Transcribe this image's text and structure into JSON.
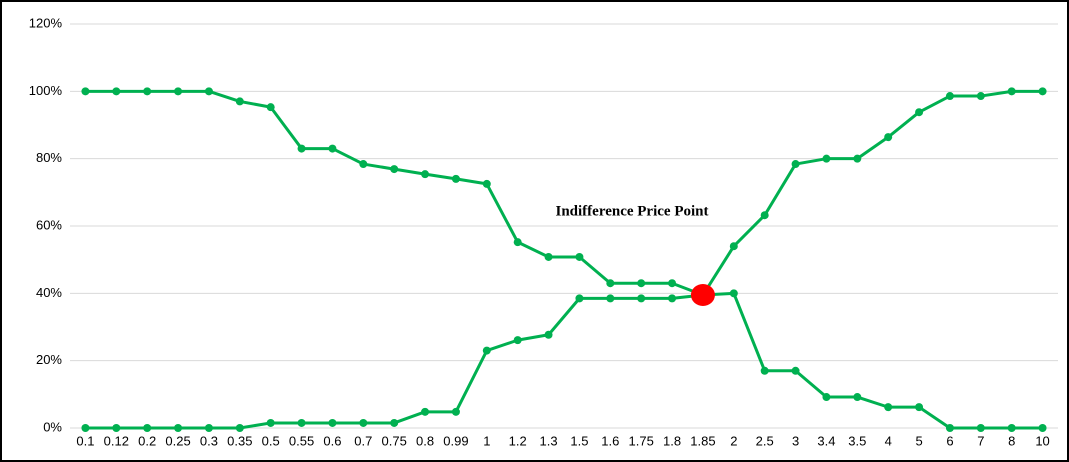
{
  "chart_data": {
    "type": "line",
    "categories": [
      "0.1",
      "0.12",
      "0.2",
      "0.25",
      "0.3",
      "0.35",
      "0.5",
      "0.55",
      "0.6",
      "0.7",
      "0.75",
      "0.8",
      "0.99",
      "1",
      "1.2",
      "1.3",
      "1.5",
      "1.6",
      "1.75",
      "1.8",
      "1.85",
      "2",
      "2.5",
      "3",
      "3.4",
      "3.5",
      "4",
      "5",
      "6",
      "7",
      "8",
      "10"
    ],
    "series": [
      {
        "color": "#00b050",
        "values": [
          100,
          100,
          100,
          100,
          100,
          97,
          95.3,
          83,
          83,
          78.4,
          76.9,
          75.4,
          74,
          72.5,
          55.2,
          50.8,
          50.8,
          43,
          43,
          43,
          39.5,
          40,
          17,
          17,
          9.2,
          9.2,
          6.2,
          6.2,
          0,
          0,
          0,
          0
        ]
      },
      {
        "color": "#00b050",
        "values": [
          0,
          0,
          0,
          0,
          0,
          0,
          1.5,
          1.5,
          1.5,
          1.5,
          1.5,
          4.8,
          4.8,
          23,
          26.1,
          27.7,
          38.5,
          38.5,
          38.5,
          38.5,
          39.5,
          54,
          63.2,
          78.4,
          80,
          80,
          86.4,
          93.8,
          98.6,
          98.6,
          100,
          100
        ]
      }
    ],
    "ylim": [
      0,
      120
    ],
    "yticks": [
      {
        "value": 0,
        "label": "0%"
      },
      {
        "value": 20,
        "label": "20%"
      },
      {
        "value": 40,
        "label": "40%"
      },
      {
        "value": 60,
        "label": "60%"
      },
      {
        "value": 80,
        "label": "80%"
      },
      {
        "value": 100,
        "label": "100%"
      },
      {
        "value": 120,
        "label": "120%"
      }
    ],
    "grid": true,
    "annotation": "Indifference Price Point",
    "highlight": {
      "x": "1.85",
      "y": 39.5,
      "color": "#ff0000"
    }
  }
}
